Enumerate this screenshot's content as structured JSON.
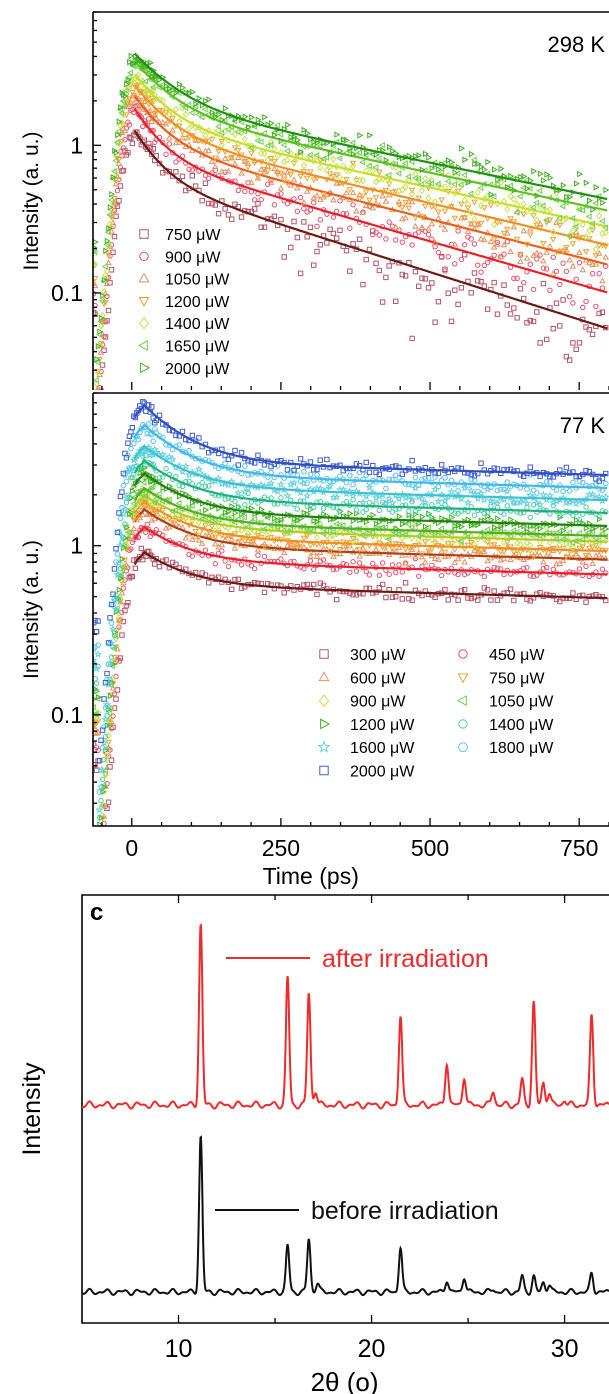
{
  "chart_data": [
    {
      "type": "scatter",
      "panel_label": "",
      "annotation": "298 K",
      "xlabel": "",
      "ylabel": "Intensity (a. u.)",
      "xlim": [
        -65,
        800
      ],
      "ylim": [
        0.022,
        8
      ],
      "y_scale": "log",
      "y_ticks": [
        {
          "value": 1,
          "label": "1"
        },
        {
          "value": 0.1,
          "label": "0.1"
        }
      ],
      "legend_position": "bottom-left",
      "series": [
        {
          "name": "750 μW",
          "marker": "square",
          "color": "#b5556a",
          "fit_color": "#6b1a12",
          "peak": 1.35,
          "tau": [
            40,
            300
          ],
          "tail": 0.057
        },
        {
          "name": "900 μW",
          "marker": "circle",
          "color": "#e8506a",
          "fit_color": "#e8202a",
          "peak": 1.9,
          "tau": [
            40,
            350
          ],
          "tail": 0.1
        },
        {
          "name": "1050 μW",
          "marker": "triangle-up",
          "color": "#e89060",
          "fit_color": "#e8601a",
          "peak": 2.3,
          "tau": [
            45,
            400
          ],
          "tail": 0.155
        },
        {
          "name": "1200 μW",
          "marker": "triangle-down",
          "color": "#f0a030",
          "fit_color": "#f09020",
          "peak": 2.7,
          "tau": [
            50,
            450
          ],
          "tail": 0.21
        },
        {
          "name": "1400 μW",
          "marker": "diamond",
          "color": "#c8e050",
          "fit_color": "#c8e020",
          "peak": 3.2,
          "tau": [
            50,
            500
          ],
          "tail": 0.28
        },
        {
          "name": "1650 μW",
          "marker": "triangle-left",
          "color": "#70d050",
          "fit_color": "#60c020",
          "peak": 3.9,
          "tau": [
            55,
            550
          ],
          "tail": 0.36
        },
        {
          "name": "2000 μW",
          "marker": "triangle-right",
          "color": "#40b020",
          "fit_color": "#209010",
          "peak": 4.4,
          "tau": [
            60,
            600
          ],
          "tail": 0.43
        }
      ]
    },
    {
      "type": "scatter",
      "panel_label": "",
      "annotation": "77 K",
      "xlabel": "Time (ps)",
      "ylabel": "Intensity (a. u.)",
      "xlim": [
        -65,
        800
      ],
      "ylim": [
        0.022,
        8
      ],
      "y_scale": "log",
      "x_ticks": [
        0,
        250,
        500,
        750
      ],
      "y_ticks": [
        {
          "value": 1,
          "label": "1"
        },
        {
          "value": 0.1,
          "label": "0.1"
        }
      ],
      "legend_position": "bottom-right",
      "series": [
        {
          "name": "300 μW",
          "marker": "square",
          "color": "#b5556a",
          "fit_color": "#6b1a12",
          "peak": 0.92,
          "tail": 0.58
        },
        {
          "name": "450 μW",
          "marker": "circle",
          "color": "#e8506a",
          "fit_color": "#e8202a",
          "peak": 1.3,
          "tail": 0.8
        },
        {
          "name": "600 μW",
          "marker": "triangle-up",
          "color": "#e89060",
          "fit_color": "#b04010",
          "peak": 1.65,
          "tail": 0.98
        },
        {
          "name": "750 μW",
          "marker": "triangle-down",
          "color": "#f0a030",
          "fit_color": "#f09020",
          "peak": 1.85,
          "tail": 1.1
        },
        {
          "name": "900 μW",
          "marker": "diamond",
          "color": "#c8e050",
          "fit_color": "#b0d020",
          "peak": 2.0,
          "tail": 1.25
        },
        {
          "name": "1050 μW",
          "marker": "triangle-left",
          "color": "#70d050",
          "fit_color": "#50b020",
          "peak": 2.2,
          "tail": 1.35
        },
        {
          "name": "1200 μW",
          "marker": "triangle-right",
          "color": "#40b020",
          "fit_color": "#208010",
          "peak": 2.7,
          "tail": 1.55
        },
        {
          "name": "1400 μW",
          "marker": "circle",
          "color": "#40d0a0",
          "fit_color": "#20b080",
          "peak": 3.2,
          "tail": 1.85
        },
        {
          "name": "1600 μW",
          "marker": "star",
          "color": "#60d0e0",
          "fit_color": "#40c0d0",
          "peak": 3.9,
          "tail": 2.2
        },
        {
          "name": "1800 μW",
          "marker": "hexagon",
          "color": "#60c8f0",
          "fit_color": "#40b8e8",
          "peak": 5.2,
          "tail": 2.6
        },
        {
          "name": "2000 μW",
          "marker": "square",
          "color": "#4060d0",
          "fit_color": "#3050c0",
          "peak": 6.8,
          "tail": 3.1
        }
      ]
    },
    {
      "type": "line",
      "panel_label": "c",
      "xlabel": "2θ (o)",
      "ylabel": "Intensity",
      "xlim": [
        5,
        32.3
      ],
      "x_ticks": [
        10,
        20,
        30
      ],
      "legend_position": "inside",
      "series": [
        {
          "name": "after irradiation",
          "color": "#ee2a2a",
          "peaks": [
            [
              11.15,
              1.0
            ],
            [
              15.65,
              0.71
            ],
            [
              16.75,
              0.62
            ],
            [
              17.1,
              0.08
            ],
            [
              21.5,
              0.5
            ],
            [
              23.9,
              0.24
            ],
            [
              24.8,
              0.16
            ],
            [
              26.3,
              0.08
            ],
            [
              27.8,
              0.14
            ],
            [
              28.4,
              0.57
            ],
            [
              28.9,
              0.12
            ],
            [
              29.2,
              0.07
            ],
            [
              30.0,
              0.03
            ],
            [
              31.4,
              0.5
            ]
          ]
        },
        {
          "name": "before irradiation",
          "color": "#111111",
          "peaks": [
            [
              11.15,
              1.0
            ],
            [
              15.65,
              0.3
            ],
            [
              16.75,
              0.34
            ],
            [
              17.2,
              0.06
            ],
            [
              21.5,
              0.29
            ],
            [
              23.9,
              0.08
            ],
            [
              24.8,
              0.1
            ],
            [
              26.3,
              0.02
            ],
            [
              27.8,
              0.1
            ],
            [
              28.4,
              0.1
            ],
            [
              28.9,
              0.06
            ],
            [
              29.2,
              0.05
            ],
            [
              31.4,
              0.12
            ]
          ]
        }
      ]
    }
  ]
}
